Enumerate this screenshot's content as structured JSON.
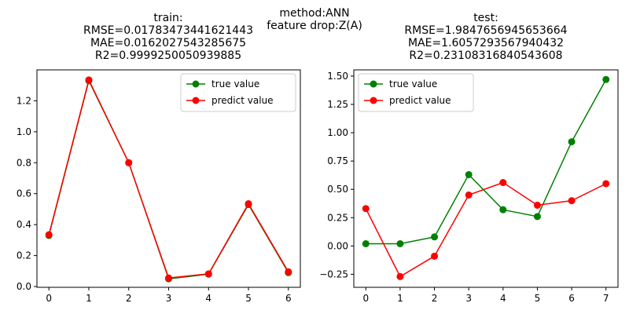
{
  "suptitle": [
    "method:ANN",
    "feature drop:Z(A)"
  ],
  "colors": {
    "true": "#008000",
    "pred": "#ff0000",
    "legend_border": "#cccccc"
  },
  "chart_data": [
    {
      "type": "line",
      "title": [
        "train:",
        "RMSE=0.01783473441621443",
        "MAE=0.0162027543285675",
        "R2=0.9999250050939885"
      ],
      "x": [
        0,
        1,
        2,
        3,
        4,
        5,
        6
      ],
      "series": [
        {
          "name": "true value",
          "values": [
            0.33,
            1.33,
            0.8,
            0.05,
            0.08,
            0.53,
            0.09
          ]
        },
        {
          "name": "predict value",
          "values": [
            0.335,
            1.335,
            0.8,
            0.055,
            0.082,
            0.535,
            0.095
          ]
        }
      ],
      "xlim": [
        -0.3,
        6.3
      ],
      "ylim": [
        -0.005,
        1.4
      ],
      "xticks": [
        0,
        1,
        2,
        3,
        4,
        5,
        6
      ],
      "yticks": [
        0.0,
        0.2,
        0.4,
        0.6,
        0.8,
        1.0,
        1.2
      ],
      "ytick_labels": [
        "0.0",
        "0.2",
        "0.4",
        "0.6",
        "0.8",
        "1.0",
        "1.2"
      ],
      "legend": "upper right",
      "grid": false
    },
    {
      "type": "line",
      "title": [
        "test:",
        "RMSE=1.9847656945653664",
        "MAE=1.6057293567940432",
        "R2=0.23108316840543608"
      ],
      "x": [
        0,
        1,
        2,
        3,
        4,
        5,
        6,
        7
      ],
      "series": [
        {
          "name": "true value",
          "values": [
            0.02,
            0.02,
            0.08,
            0.63,
            0.32,
            0.26,
            0.92,
            1.47
          ]
        },
        {
          "name": "predict value",
          "values": [
            0.33,
            -0.27,
            -0.09,
            0.45,
            0.56,
            0.36,
            0.4,
            0.55
          ]
        }
      ],
      "xlim": [
        -0.35,
        7.35
      ],
      "ylim": [
        -0.365,
        1.555
      ],
      "xticks": [
        0,
        1,
        2,
        3,
        4,
        5,
        6,
        7
      ],
      "yticks": [
        -0.25,
        0.0,
        0.25,
        0.5,
        0.75,
        1.0,
        1.25,
        1.5
      ],
      "ytick_labels": [
        "−0.25",
        "0.00",
        "0.25",
        "0.50",
        "0.75",
        "1.00",
        "1.25",
        "1.50"
      ],
      "legend": "upper left",
      "grid": false
    }
  ]
}
